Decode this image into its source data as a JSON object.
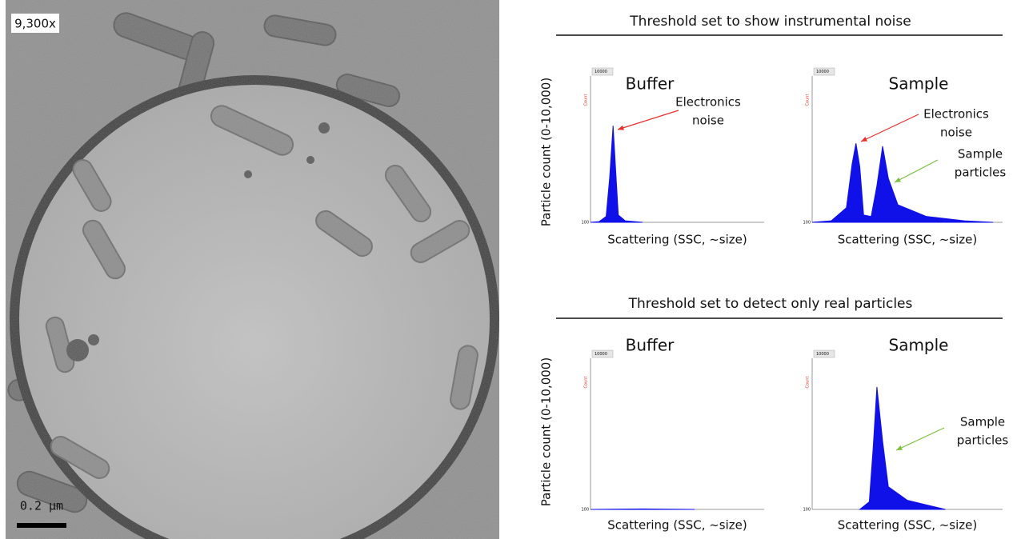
{
  "image": {
    "magnification": "9,300x",
    "scale_bar": "0.2 µm"
  },
  "sections": [
    {
      "title": "Threshold set to show instrumental noise",
      "y_label": "Particle count (0-10,000)",
      "panels": [
        {
          "title": "Buffer",
          "x_label": "Scattering (SSC, ~size)",
          "dropdown": "10000",
          "axis_name": "Count",
          "axis_min": "100",
          "annotations": [
            {
              "lines": [
                "Electronics",
                "noise"
              ],
              "color": "#e8302a"
            }
          ]
        },
        {
          "title": "Sample",
          "x_label": "Scattering (SSC, ~size)",
          "dropdown": "10000",
          "axis_name": "Count",
          "axis_min": "100",
          "annotations": [
            {
              "lines": [
                "Electronics",
                "noise"
              ],
              "color": "#e8302a"
            },
            {
              "lines": [
                "Sample",
                "particles"
              ],
              "color": "#7cc242"
            }
          ]
        }
      ]
    },
    {
      "title": "Threshold set to detect only real particles",
      "y_label": "Particle count (0-10,000)",
      "panels": [
        {
          "title": "Buffer",
          "x_label": "Scattering (SSC, ~size)",
          "dropdown": "10000",
          "axis_name": "Count",
          "axis_min": "100",
          "annotations": []
        },
        {
          "title": "Sample",
          "x_label": "Scattering (SSC, ~size)",
          "dropdown": "10000",
          "axis_name": "Count",
          "axis_min": "100",
          "annotations": [
            {
              "lines": [
                "Sample",
                "particles"
              ],
              "color": "#7cc242"
            }
          ]
        }
      ]
    }
  ]
}
